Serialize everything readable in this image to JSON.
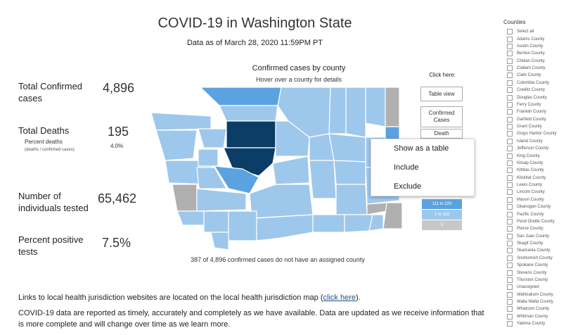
{
  "header": {
    "title": "COVID-19 in Washington State",
    "as_of": "Data as of March 28, 2020 11:59PM PT"
  },
  "stats": {
    "confirmed_label_1": "Total Confirmed",
    "confirmed_label_2": "cases",
    "confirmed_value": "4,896",
    "deaths_label": "Total Deaths",
    "deaths_value": "195",
    "percent_deaths_label": "Percent deaths",
    "percent_deaths_sublabel": "(deaths / confirmed cases)",
    "percent_deaths_value": "4.0%",
    "tested_label_1": "Number of",
    "tested_label_2": "individuals tested",
    "tested_value": "65,462",
    "positive_label_1": "Percent positive",
    "positive_label_2": "tests",
    "positive_value": "7.5%"
  },
  "map": {
    "title": "Confirmed cases by county",
    "subtitle": "Hover over a county for details",
    "unassigned_note": "387 of 4,896 confirmed cases do not have an assigned county",
    "colors": {
      "light": "#9ec7ec",
      "medium": "#5aa3e0",
      "dark": "#0b3d66",
      "grey": "#b0b0b0",
      "border": "#ffffff"
    }
  },
  "side_panel": {
    "click_here": "Click here:",
    "table_view": "Table view",
    "confirmed_1": "Confirmed",
    "confirmed_2": "Cases",
    "deaths_partial": "Death"
  },
  "legend": [
    {
      "label": "111 to 220",
      "color": "#5aa3e0"
    },
    {
      "label": "1 to 110",
      "color": "#9ec7ec"
    },
    {
      "label": "0",
      "color": "#c8c8c8"
    }
  ],
  "context_menu": {
    "items": [
      "Show as a table",
      "Include",
      "Exclude"
    ]
  },
  "footer": {
    "line1_prefix": "Links to local health jurisdiction websites are located on the local health jurisdiction map (",
    "line1_link": "click here",
    "line1_suffix": ").",
    "line2": "COVID-19 data are reported as timely, accurately and completely as we have available. Data are updated as we receive information that is more complete and will change over time as we learn more."
  },
  "counties": {
    "title": "Counties",
    "items": [
      "Select all",
      "Adams County",
      "Asotin County",
      "Benton County",
      "Chelan County",
      "Clallam County",
      "Clark County",
      "Columbia County",
      "Cowlitz County",
      "Douglas County",
      "Ferry County",
      "Franklin County",
      "Garfield County",
      "Grant County",
      "Grays Harbor County",
      "Island County",
      "Jefferson County",
      "King County",
      "Kitsap County",
      "Kittitas County",
      "Klickitat County",
      "Lewis County",
      "Lincoln County",
      "Mason County",
      "Okanogan County",
      "Pacific County",
      "Pend Oreille County",
      "Pierce County",
      "San Juan County",
      "Skagit County",
      "Skamania County",
      "Snohomish County",
      "Spokane County",
      "Stevens County",
      "Thurston County",
      "Unassigned",
      "Wahkiakum County",
      "Walla Walla County",
      "Whatcom County",
      "Whitman County",
      "Yakima County"
    ]
  }
}
